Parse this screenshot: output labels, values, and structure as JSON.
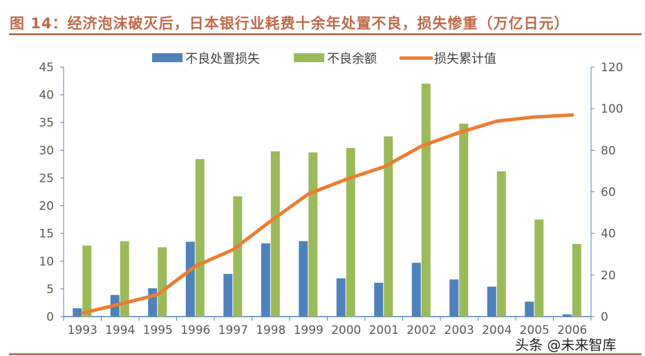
{
  "title": "图 14：经济泡沫破灭后，日本银行业耗费十余年处置不良，损失惨重（万亿日元）",
  "watermark": "头条 @未来智库",
  "chart_data": {
    "type": "bar+line",
    "categories": [
      "1993",
      "1994",
      "1995",
      "1996",
      "1997",
      "1998",
      "1999",
      "2000",
      "2001",
      "2002",
      "2003",
      "2004",
      "2005",
      "2006"
    ],
    "series": [
      {
        "name": "不良处置损失",
        "type": "bar",
        "axis": "left",
        "color": "#4f81bd",
        "values": [
          1.5,
          3.9,
          5.1,
          13.5,
          7.7,
          13.2,
          13.6,
          6.9,
          6.1,
          9.7,
          6.7,
          5.4,
          2.7,
          0.4
        ]
      },
      {
        "name": "不良余额",
        "type": "bar",
        "axis": "left",
        "color": "#9bbb59",
        "values": [
          12.8,
          13.6,
          12.5,
          28.4,
          21.7,
          29.8,
          29.6,
          30.4,
          32.5,
          42.0,
          34.8,
          26.2,
          17.5,
          13.1
        ]
      },
      {
        "name": "损失累计值",
        "type": "line",
        "axis": "right",
        "color": "#ed7d31",
        "values": [
          1.7,
          6,
          10.6,
          24.3,
          32.2,
          46,
          59,
          66,
          72,
          82,
          88.5,
          94,
          96,
          97
        ]
      }
    ],
    "ylim_left": [
      0,
      45
    ],
    "yticks_left": [
      "0",
      "5",
      "10",
      "15",
      "20",
      "25",
      "30",
      "35",
      "40",
      "45"
    ],
    "ylim_right": [
      0,
      120
    ],
    "yticks_right": [
      "0",
      "20",
      "40",
      "60",
      "80",
      "100",
      "120"
    ],
    "legend": "top",
    "grid": false
  }
}
